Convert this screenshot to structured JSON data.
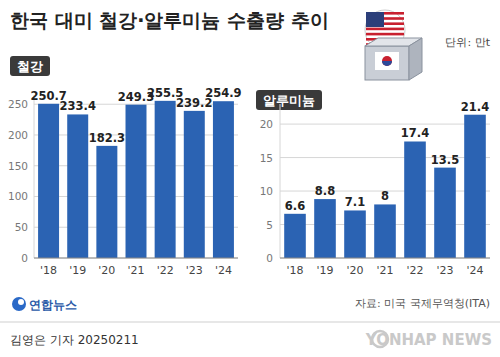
{
  "header": {
    "title": "한국 대미 철강·알루미늄 수출량 추이",
    "unit": "단위: 만t"
  },
  "chart_data": [
    {
      "type": "bar",
      "title": "철강",
      "categories": [
        "'18",
        "'19",
        "'20",
        "'21",
        "'22",
        "'23",
        "'24"
      ],
      "values": [
        250.7,
        233.4,
        182.3,
        249.3,
        255.5,
        239.2,
        254.9
      ],
      "color": "#2b63b3",
      "ylim": [
        0,
        265
      ],
      "yticks": [
        0,
        50,
        100,
        150,
        200,
        250
      ],
      "grid": true,
      "data_labels": true
    },
    {
      "type": "bar",
      "title": "알루미늄",
      "categories": [
        "'18",
        "'19",
        "'20",
        "'21",
        "'22",
        "'23",
        "'24"
      ],
      "values": [
        6.6,
        8.8,
        7.1,
        8.0,
        17.4,
        13.5,
        21.4
      ],
      "color": "#2b63b3",
      "ylim": [
        0,
        23
      ],
      "yticks": [
        0,
        5,
        10,
        15,
        20
      ],
      "grid": true,
      "data_labels": true
    }
  ],
  "footer": {
    "logo": "연합뉴스",
    "source": "자료: 미국 국제무역청(ITA)",
    "credit": "김영은 기자 20250211",
    "watermark": "YONHAP NEWS"
  }
}
